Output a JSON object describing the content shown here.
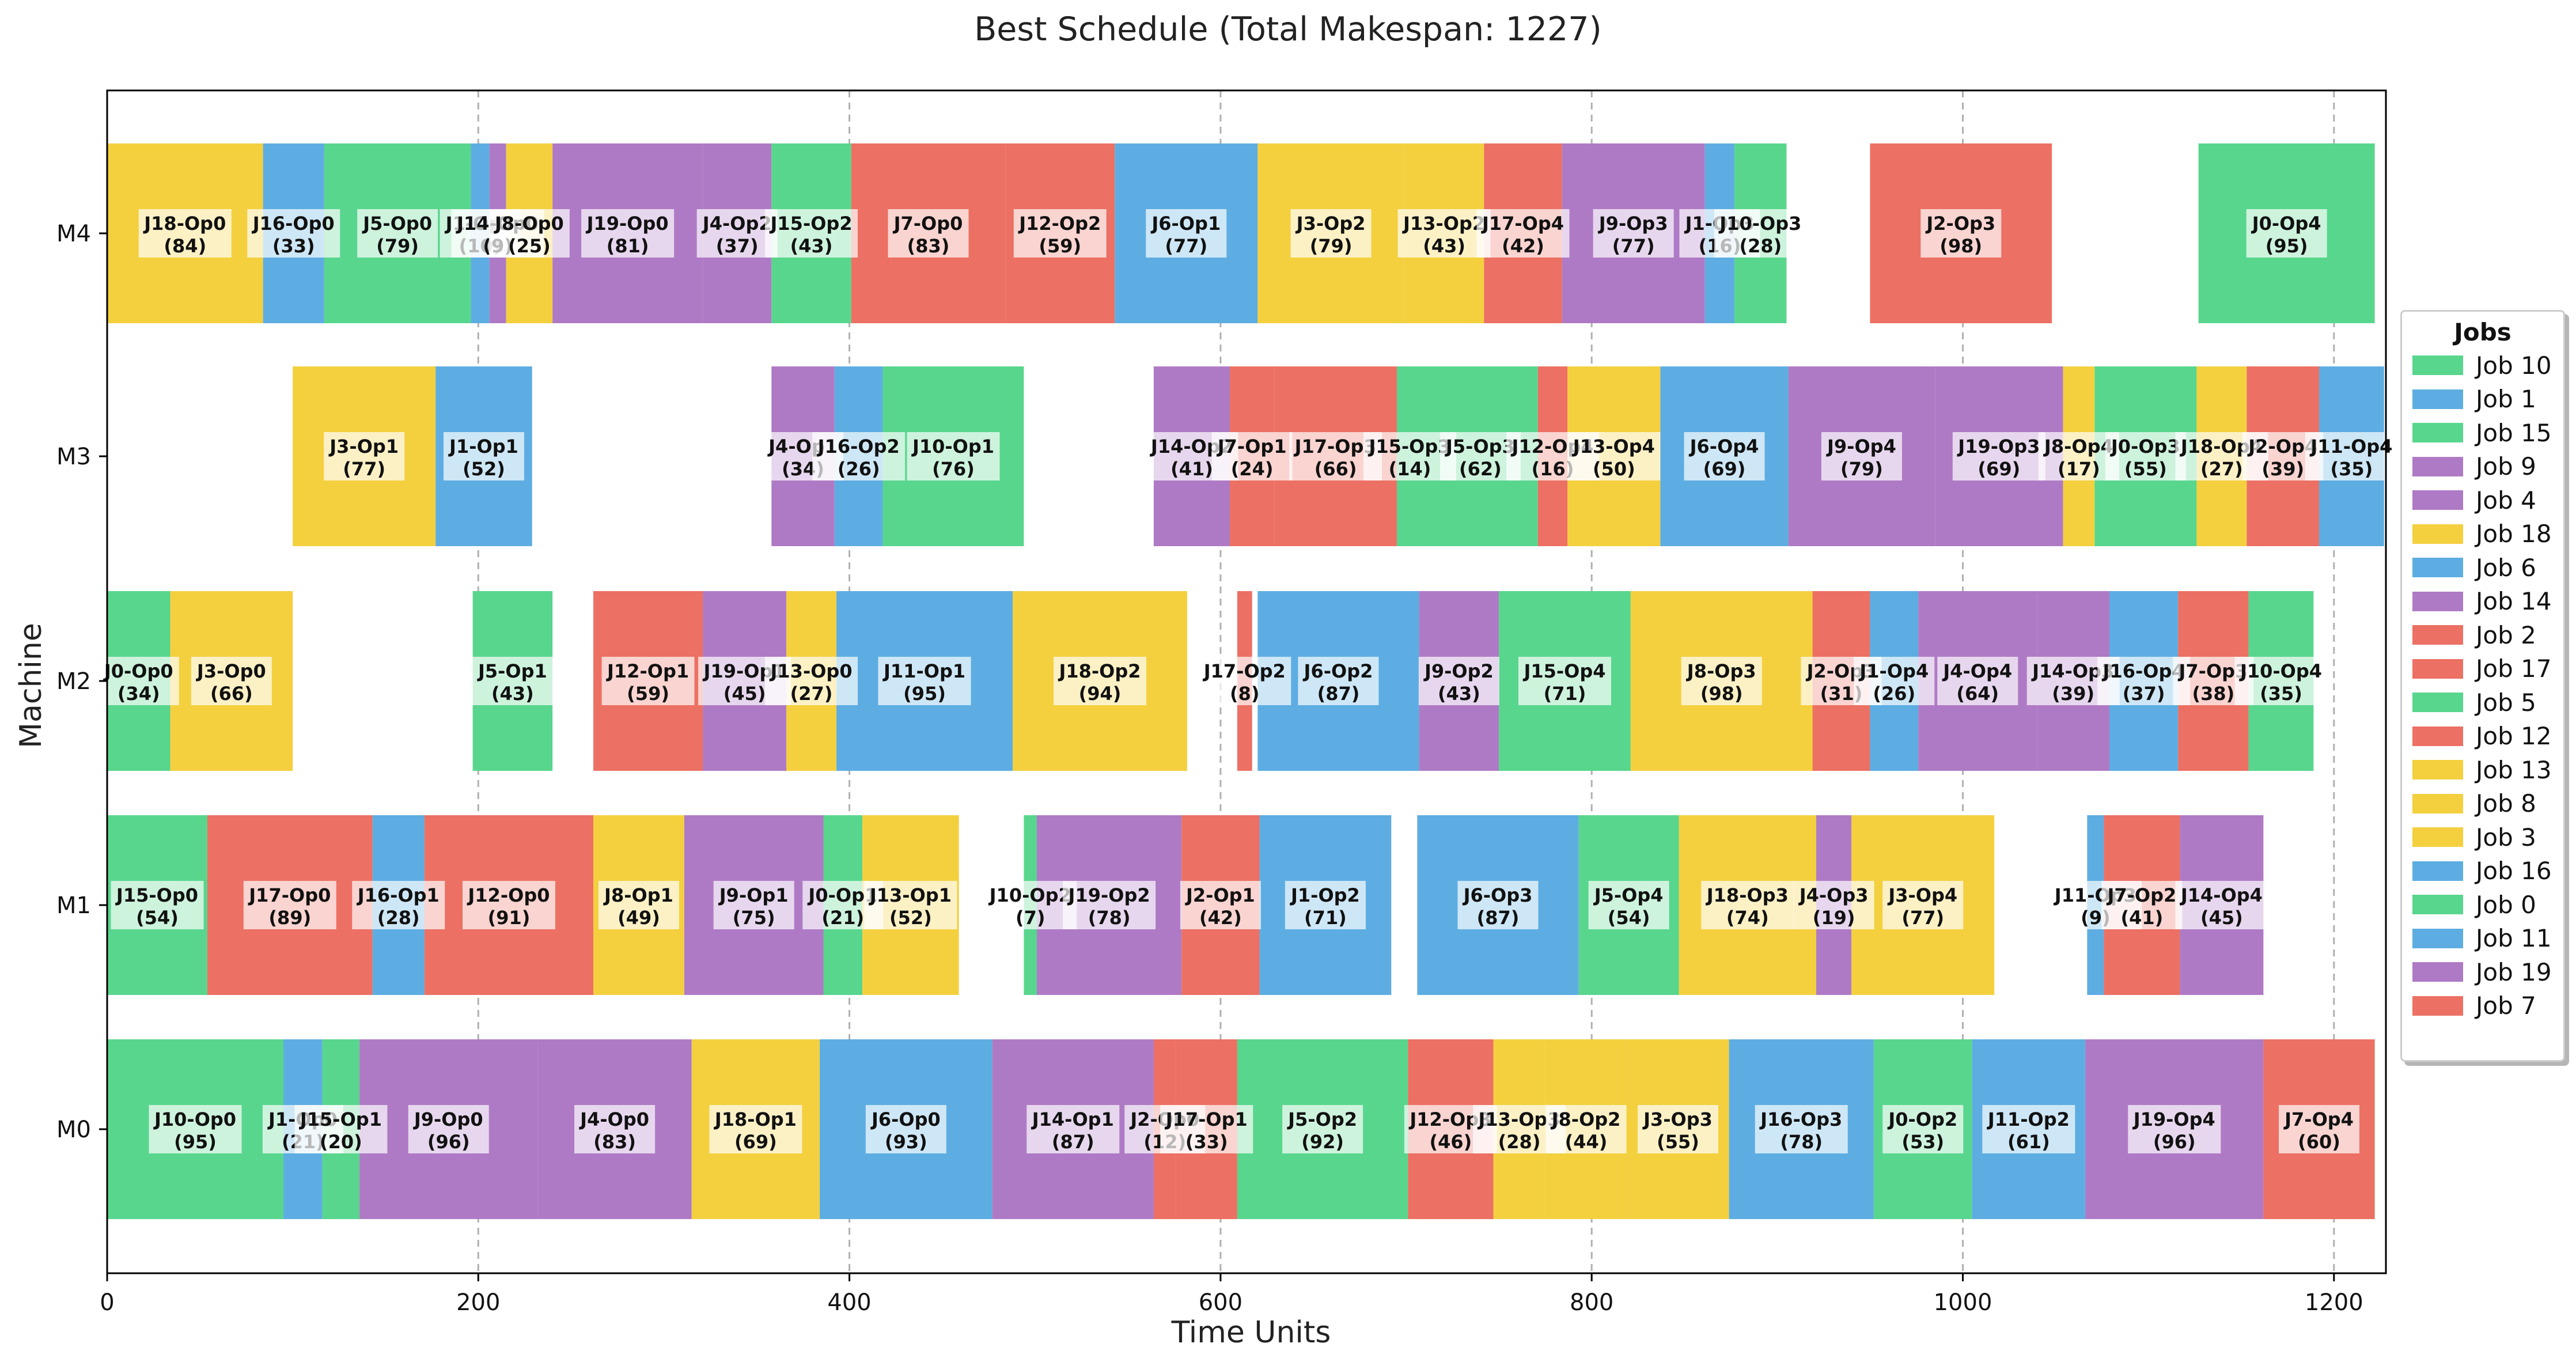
{
  "chart_data": {
    "type": "gantt",
    "title": "Best Schedule (Total Makespan: 1227)",
    "xlabel": "Time Units",
    "ylabel": "Machine",
    "xlim": [
      0,
      1228
    ],
    "xticks": [
      0,
      200,
      400,
      600,
      800,
      1000,
      1200
    ],
    "grid_x": true,
    "machines": [
      "M0",
      "M1",
      "M2",
      "M3",
      "M4"
    ],
    "legend_title": "Jobs",
    "legend_position": "right",
    "legend": [
      {
        "label": "Job 10",
        "color": "#58d68d"
      },
      {
        "label": "Job 1",
        "color": "#5dade2"
      },
      {
        "label": "Job 15",
        "color": "#58d68d"
      },
      {
        "label": "Job 9",
        "color": "#af7ac5"
      },
      {
        "label": "Job 4",
        "color": "#af7ac5"
      },
      {
        "label": "Job 18",
        "color": "#f4d03f"
      },
      {
        "label": "Job 6",
        "color": "#5dade2"
      },
      {
        "label": "Job 14",
        "color": "#af7ac5"
      },
      {
        "label": "Job 2",
        "color": "#ec7063"
      },
      {
        "label": "Job 17",
        "color": "#ec7063"
      },
      {
        "label": "Job 5",
        "color": "#58d68d"
      },
      {
        "label": "Job 12",
        "color": "#ec7063"
      },
      {
        "label": "Job 13",
        "color": "#f4d03f"
      },
      {
        "label": "Job 8",
        "color": "#f4d03f"
      },
      {
        "label": "Job 3",
        "color": "#f4d03f"
      },
      {
        "label": "Job 16",
        "color": "#5dade2"
      },
      {
        "label": "Job 0",
        "color": "#58d68d"
      },
      {
        "label": "Job 11",
        "color": "#5dade2"
      },
      {
        "label": "Job 19",
        "color": "#af7ac5"
      },
      {
        "label": "Job 7",
        "color": "#ec7063"
      }
    ],
    "tasks": [
      {
        "machine": "M0",
        "job": 10,
        "op": "J10-Op0",
        "start": 0,
        "duration": 95
      },
      {
        "machine": "M0",
        "job": 1,
        "op": "J1-Op0",
        "start": 95,
        "duration": 21
      },
      {
        "machine": "M0",
        "job": 15,
        "op": "J15-Op1",
        "start": 116,
        "duration": 20
      },
      {
        "machine": "M0",
        "job": 9,
        "op": "J9-Op0",
        "start": 136,
        "duration": 96
      },
      {
        "machine": "M0",
        "job": 4,
        "op": "J4-Op0",
        "start": 232,
        "duration": 83
      },
      {
        "machine": "M0",
        "job": 18,
        "op": "J18-Op1",
        "start": 315,
        "duration": 69
      },
      {
        "machine": "M0",
        "job": 6,
        "op": "J6-Op0",
        "start": 384,
        "duration": 93
      },
      {
        "machine": "M0",
        "job": 14,
        "op": "J14-Op1",
        "start": 477,
        "duration": 87
      },
      {
        "machine": "M0",
        "job": 2,
        "op": "J2-Op0",
        "start": 564,
        "duration": 12
      },
      {
        "machine": "M0",
        "job": 17,
        "op": "J17-Op1",
        "start": 576,
        "duration": 33
      },
      {
        "machine": "M0",
        "job": 5,
        "op": "J5-Op2",
        "start": 609,
        "duration": 92
      },
      {
        "machine": "M0",
        "job": 12,
        "op": "J12-Op3",
        "start": 701,
        "duration": 46
      },
      {
        "machine": "M0",
        "job": 13,
        "op": "J13-Op3",
        "start": 747,
        "duration": 28
      },
      {
        "machine": "M0",
        "job": 8,
        "op": "J8-Op2",
        "start": 775,
        "duration": 44
      },
      {
        "machine": "M0",
        "job": 3,
        "op": "J3-Op3",
        "start": 819,
        "duration": 55
      },
      {
        "machine": "M0",
        "job": 16,
        "op": "J16-Op3",
        "start": 874,
        "duration": 78
      },
      {
        "machine": "M0",
        "job": 0,
        "op": "J0-Op2",
        "start": 952,
        "duration": 53
      },
      {
        "machine": "M0",
        "job": 11,
        "op": "J11-Op2",
        "start": 1005,
        "duration": 61
      },
      {
        "machine": "M0",
        "job": 19,
        "op": "J19-Op4",
        "start": 1066,
        "duration": 96
      },
      {
        "machine": "M0",
        "job": 7,
        "op": "J7-Op4",
        "start": 1162,
        "duration": 60
      },
      {
        "machine": "M1",
        "job": 15,
        "op": "J15-Op0",
        "start": 0,
        "duration": 54
      },
      {
        "machine": "M1",
        "job": 17,
        "op": "J17-Op0",
        "start": 54,
        "duration": 89
      },
      {
        "machine": "M1",
        "job": 16,
        "op": "J16-Op1",
        "start": 143,
        "duration": 28
      },
      {
        "machine": "M1",
        "job": 12,
        "op": "J12-Op0",
        "start": 171,
        "duration": 91
      },
      {
        "machine": "M1",
        "job": 8,
        "op": "J8-Op1",
        "start": 262,
        "duration": 49
      },
      {
        "machine": "M1",
        "job": 9,
        "op": "J9-Op1",
        "start": 311,
        "duration": 75
      },
      {
        "machine": "M1",
        "job": 0,
        "op": "J0-Op1",
        "start": 386,
        "duration": 21
      },
      {
        "machine": "M1",
        "job": 13,
        "op": "J13-Op1",
        "start": 407,
        "duration": 52
      },
      {
        "machine": "M1",
        "job": 10,
        "op": "J10-Op2",
        "start": 494,
        "duration": 7
      },
      {
        "machine": "M1",
        "job": 19,
        "op": "J19-Op2",
        "start": 501,
        "duration": 78
      },
      {
        "machine": "M1",
        "job": 2,
        "op": "J2-Op1",
        "start": 579,
        "duration": 42
      },
      {
        "machine": "M1",
        "job": 1,
        "op": "J1-Op2",
        "start": 621,
        "duration": 71
      },
      {
        "machine": "M1",
        "job": 6,
        "op": "J6-Op3",
        "start": 706,
        "duration": 87
      },
      {
        "machine": "M1",
        "job": 5,
        "op": "J5-Op4",
        "start": 793,
        "duration": 54
      },
      {
        "machine": "M1",
        "job": 18,
        "op": "J18-Op3",
        "start": 847,
        "duration": 74
      },
      {
        "machine": "M1",
        "job": 4,
        "op": "J4-Op3",
        "start": 921,
        "duration": 19
      },
      {
        "machine": "M1",
        "job": 3,
        "op": "J3-Op4",
        "start": 940,
        "duration": 77
      },
      {
        "machine": "M1",
        "job": 11,
        "op": "J11-Op3",
        "start": 1067,
        "duration": 9
      },
      {
        "machine": "M1",
        "job": 7,
        "op": "J7-Op2",
        "start": 1076,
        "duration": 41
      },
      {
        "machine": "M1",
        "job": 14,
        "op": "J14-Op4",
        "start": 1117,
        "duration": 45
      },
      {
        "machine": "M2",
        "job": 0,
        "op": "J0-Op0",
        "start": 0,
        "duration": 34
      },
      {
        "machine": "M2",
        "job": 3,
        "op": "J3-Op0",
        "start": 34,
        "duration": 66
      },
      {
        "machine": "M2",
        "job": 5,
        "op": "J5-Op1",
        "start": 197,
        "duration": 43
      },
      {
        "machine": "M2",
        "job": 12,
        "op": "J12-Op1",
        "start": 262,
        "duration": 59
      },
      {
        "machine": "M2",
        "job": 19,
        "op": "J19-Op1",
        "start": 321,
        "duration": 45
      },
      {
        "machine": "M2",
        "job": 13,
        "op": "J13-Op0",
        "start": 366,
        "duration": 27
      },
      {
        "machine": "M2",
        "job": 11,
        "op": "J11-Op1",
        "start": 393,
        "duration": 95
      },
      {
        "machine": "M2",
        "job": 18,
        "op": "J18-Op2",
        "start": 488,
        "duration": 94
      },
      {
        "machine": "M2",
        "job": 17,
        "op": "J17-Op2",
        "start": 609,
        "duration": 8
      },
      {
        "machine": "M2",
        "job": 6,
        "op": "J6-Op2",
        "start": 620,
        "duration": 87
      },
      {
        "machine": "M2",
        "job": 9,
        "op": "J9-Op2",
        "start": 707,
        "duration": 43
      },
      {
        "machine": "M2",
        "job": 15,
        "op": "J15-Op4",
        "start": 750,
        "duration": 71
      },
      {
        "machine": "M2",
        "job": 8,
        "op": "J8-Op3",
        "start": 821,
        "duration": 98
      },
      {
        "machine": "M2",
        "job": 2,
        "op": "J2-Op3",
        "start": 919,
        "duration": 31
      },
      {
        "machine": "M2",
        "job": 1,
        "op": "J1-Op4",
        "start": 950,
        "duration": 26
      },
      {
        "machine": "M2",
        "job": 4,
        "op": "J4-Op4",
        "start": 976,
        "duration": 64
      },
      {
        "machine": "M2",
        "job": 14,
        "op": "J14-Op3",
        "start": 1040,
        "duration": 39
      },
      {
        "machine": "M2",
        "job": 16,
        "op": "J16-Op4",
        "start": 1079,
        "duration": 37
      },
      {
        "machine": "M2",
        "job": 7,
        "op": "J7-Op3",
        "start": 1116,
        "duration": 38
      },
      {
        "machine": "M2",
        "job": 10,
        "op": "J10-Op4",
        "start": 1154,
        "duration": 35
      },
      {
        "machine": "M3",
        "job": 3,
        "op": "J3-Op1",
        "start": 100,
        "duration": 77
      },
      {
        "machine": "M3",
        "job": 1,
        "op": "J1-Op1",
        "start": 177,
        "duration": 52
      },
      {
        "machine": "M3",
        "job": 4,
        "op": "J4-Op1",
        "start": 358,
        "duration": 34
      },
      {
        "machine": "M3",
        "job": 16,
        "op": "J16-Op2",
        "start": 392,
        "duration": 26
      },
      {
        "machine": "M3",
        "job": 10,
        "op": "J10-Op1",
        "start": 418,
        "duration": 76
      },
      {
        "machine": "M3",
        "job": 14,
        "op": "J14-Op2",
        "start": 564,
        "duration": 41
      },
      {
        "machine": "M3",
        "job": 7,
        "op": "J7-Op1",
        "start": 605,
        "duration": 24
      },
      {
        "machine": "M3",
        "job": 17,
        "op": "J17-Op3",
        "start": 629,
        "duration": 66
      },
      {
        "machine": "M3",
        "job": 15,
        "op": "J15-Op3",
        "start": 695,
        "duration": 14
      },
      {
        "machine": "M3",
        "job": 5,
        "op": "J5-Op3",
        "start": 709,
        "duration": 62
      },
      {
        "machine": "M3",
        "job": 12,
        "op": "J12-Op4",
        "start": 771,
        "duration": 16
      },
      {
        "machine": "M3",
        "job": 13,
        "op": "J13-Op4",
        "start": 787,
        "duration": 50
      },
      {
        "machine": "M3",
        "job": 6,
        "op": "J6-Op4",
        "start": 837,
        "duration": 69
      },
      {
        "machine": "M3",
        "job": 9,
        "op": "J9-Op4",
        "start": 906,
        "duration": 79
      },
      {
        "machine": "M3",
        "job": 19,
        "op": "J19-Op3",
        "start": 985,
        "duration": 69
      },
      {
        "machine": "M3",
        "job": 8,
        "op": "J8-Op4",
        "start": 1054,
        "duration": 17
      },
      {
        "machine": "M3",
        "job": 0,
        "op": "J0-Op3",
        "start": 1071,
        "duration": 55
      },
      {
        "machine": "M3",
        "job": 18,
        "op": "J18-Op4",
        "start": 1126,
        "duration": 27
      },
      {
        "machine": "M3",
        "job": 2,
        "op": "J2-Op4",
        "start": 1153,
        "duration": 39
      },
      {
        "machine": "M3",
        "job": 11,
        "op": "J11-Op4",
        "start": 1192,
        "duration": 35
      },
      {
        "machine": "M4",
        "job": 18,
        "op": "J18-Op0",
        "start": 0,
        "duration": 84
      },
      {
        "machine": "M4",
        "job": 16,
        "op": "J16-Op0",
        "start": 84,
        "duration": 33
      },
      {
        "machine": "M4",
        "job": 5,
        "op": "J5-Op0",
        "start": 117,
        "duration": 79
      },
      {
        "machine": "M4",
        "job": 1,
        "op": "J1-Op0",
        "start": 196,
        "duration": 10
      },
      {
        "machine": "M4",
        "job": 14,
        "op": "J14-Op0",
        "start": 206,
        "duration": 9
      },
      {
        "machine": "M4",
        "job": 8,
        "op": "J8-Op0",
        "start": 215,
        "duration": 25
      },
      {
        "machine": "M4",
        "job": 19,
        "op": "J19-Op0",
        "start": 240,
        "duration": 81
      },
      {
        "machine": "M4",
        "job": 4,
        "op": "J4-Op2",
        "start": 321,
        "duration": 37
      },
      {
        "machine": "M4",
        "job": 15,
        "op": "J15-Op2",
        "start": 358,
        "duration": 43
      },
      {
        "machine": "M4",
        "job": 7,
        "op": "J7-Op0",
        "start": 401,
        "duration": 83
      },
      {
        "machine": "M4",
        "job": 12,
        "op": "J12-Op2",
        "start": 484,
        "duration": 59
      },
      {
        "machine": "M4",
        "job": 6,
        "op": "J6-Op1",
        "start": 543,
        "duration": 77
      },
      {
        "machine": "M4",
        "job": 3,
        "op": "J3-Op2",
        "start": 620,
        "duration": 79
      },
      {
        "machine": "M4",
        "job": 13,
        "op": "J13-Op2",
        "start": 699,
        "duration": 43
      },
      {
        "machine": "M4",
        "job": 17,
        "op": "J17-Op4",
        "start": 742,
        "duration": 42
      },
      {
        "machine": "M4",
        "job": 9,
        "op": "J9-Op3",
        "start": 784,
        "duration": 77
      },
      {
        "machine": "M4",
        "job": 1,
        "op": "J1-Op3",
        "start": 861,
        "duration": 16
      },
      {
        "machine": "M4",
        "job": 10,
        "op": "J10-Op3",
        "start": 877,
        "duration": 28
      },
      {
        "machine": "M4",
        "job": 2,
        "op": "J2-Op3",
        "start": 950,
        "duration": 98
      },
      {
        "machine": "M4",
        "job": 0,
        "op": "J0-Op4",
        "start": 1127,
        "duration": 95
      }
    ]
  }
}
